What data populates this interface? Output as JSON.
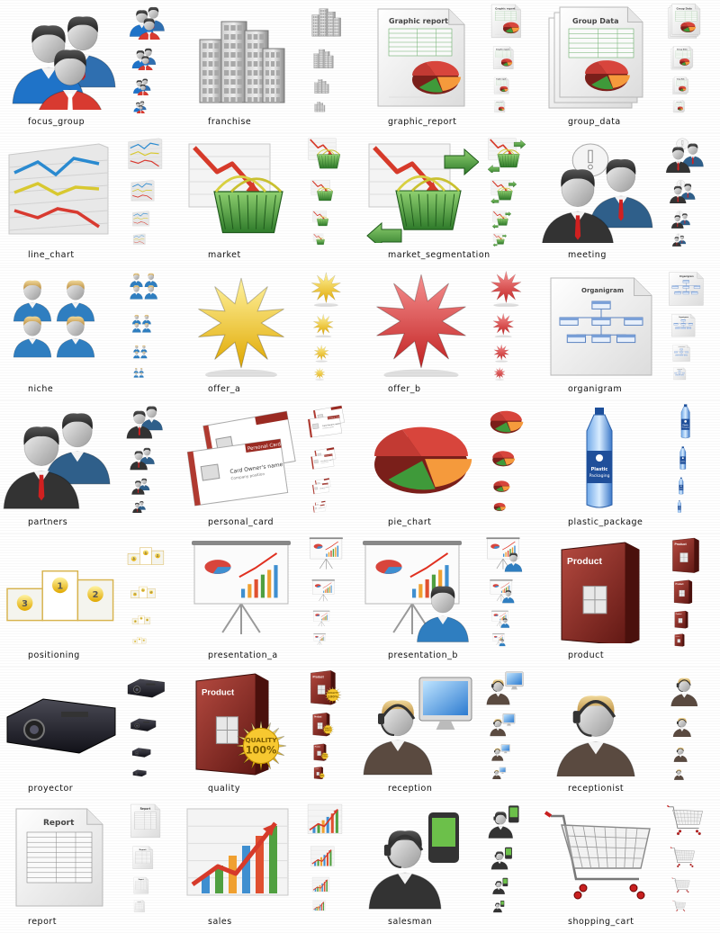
{
  "icons": [
    {
      "label": "focus_group",
      "icon": "focus-group-icon"
    },
    {
      "label": "franchise",
      "icon": "franchise-icon"
    },
    {
      "label": "graphic_report",
      "icon": "graphic-report-icon"
    },
    {
      "label": "group_data",
      "icon": "group-data-icon"
    },
    {
      "label": "line_chart",
      "icon": "line-chart-icon"
    },
    {
      "label": "market",
      "icon": "market-icon"
    },
    {
      "label": "market_segmentation",
      "icon": "market-segmentation-icon"
    },
    {
      "label": "meeting",
      "icon": "meeting-icon"
    },
    {
      "label": "niche",
      "icon": "niche-icon"
    },
    {
      "label": "offer_a",
      "icon": "offer-a-icon"
    },
    {
      "label": "offer_b",
      "icon": "offer-b-icon"
    },
    {
      "label": "organigram",
      "icon": "organigram-icon"
    },
    {
      "label": "partners",
      "icon": "partners-icon"
    },
    {
      "label": "personal_card",
      "icon": "personal-card-icon"
    },
    {
      "label": "pie_chart",
      "icon": "pie-chart-icon"
    },
    {
      "label": "plastic_package",
      "icon": "plastic-package-icon"
    },
    {
      "label": "positioning",
      "icon": "positioning-icon"
    },
    {
      "label": "presentation_a",
      "icon": "presentation-a-icon"
    },
    {
      "label": "presentation_b",
      "icon": "presentation-b-icon"
    },
    {
      "label": "product",
      "icon": "product-icon"
    },
    {
      "label": "proyector",
      "icon": "proyector-icon"
    },
    {
      "label": "quality",
      "icon": "quality-icon"
    },
    {
      "label": "reception",
      "icon": "reception-icon"
    },
    {
      "label": "receptionist",
      "icon": "receptionist-icon"
    },
    {
      "label": "report",
      "icon": "report-icon"
    },
    {
      "label": "sales",
      "icon": "sales-icon"
    },
    {
      "label": "salesman",
      "icon": "salesman-icon"
    },
    {
      "label": "shopping_cart",
      "icon": "shopping-cart-icon"
    }
  ],
  "icon_text": {
    "graphic_report": "Graphic report",
    "group_data": "Group Data",
    "organigram": "Organigram",
    "personal_card_title": "Personal Card",
    "personal_card_name": "Card Owner's name",
    "personal_card_sub": "Company position",
    "plastic_package_line1": "Plastic",
    "plastic_package_line2": "Packaging",
    "product": "Product",
    "quality_seal": "QUALITY",
    "quality_percent": "100%",
    "report": "Report",
    "rank_1": "1",
    "rank_2": "2",
    "rank_3": "3"
  }
}
